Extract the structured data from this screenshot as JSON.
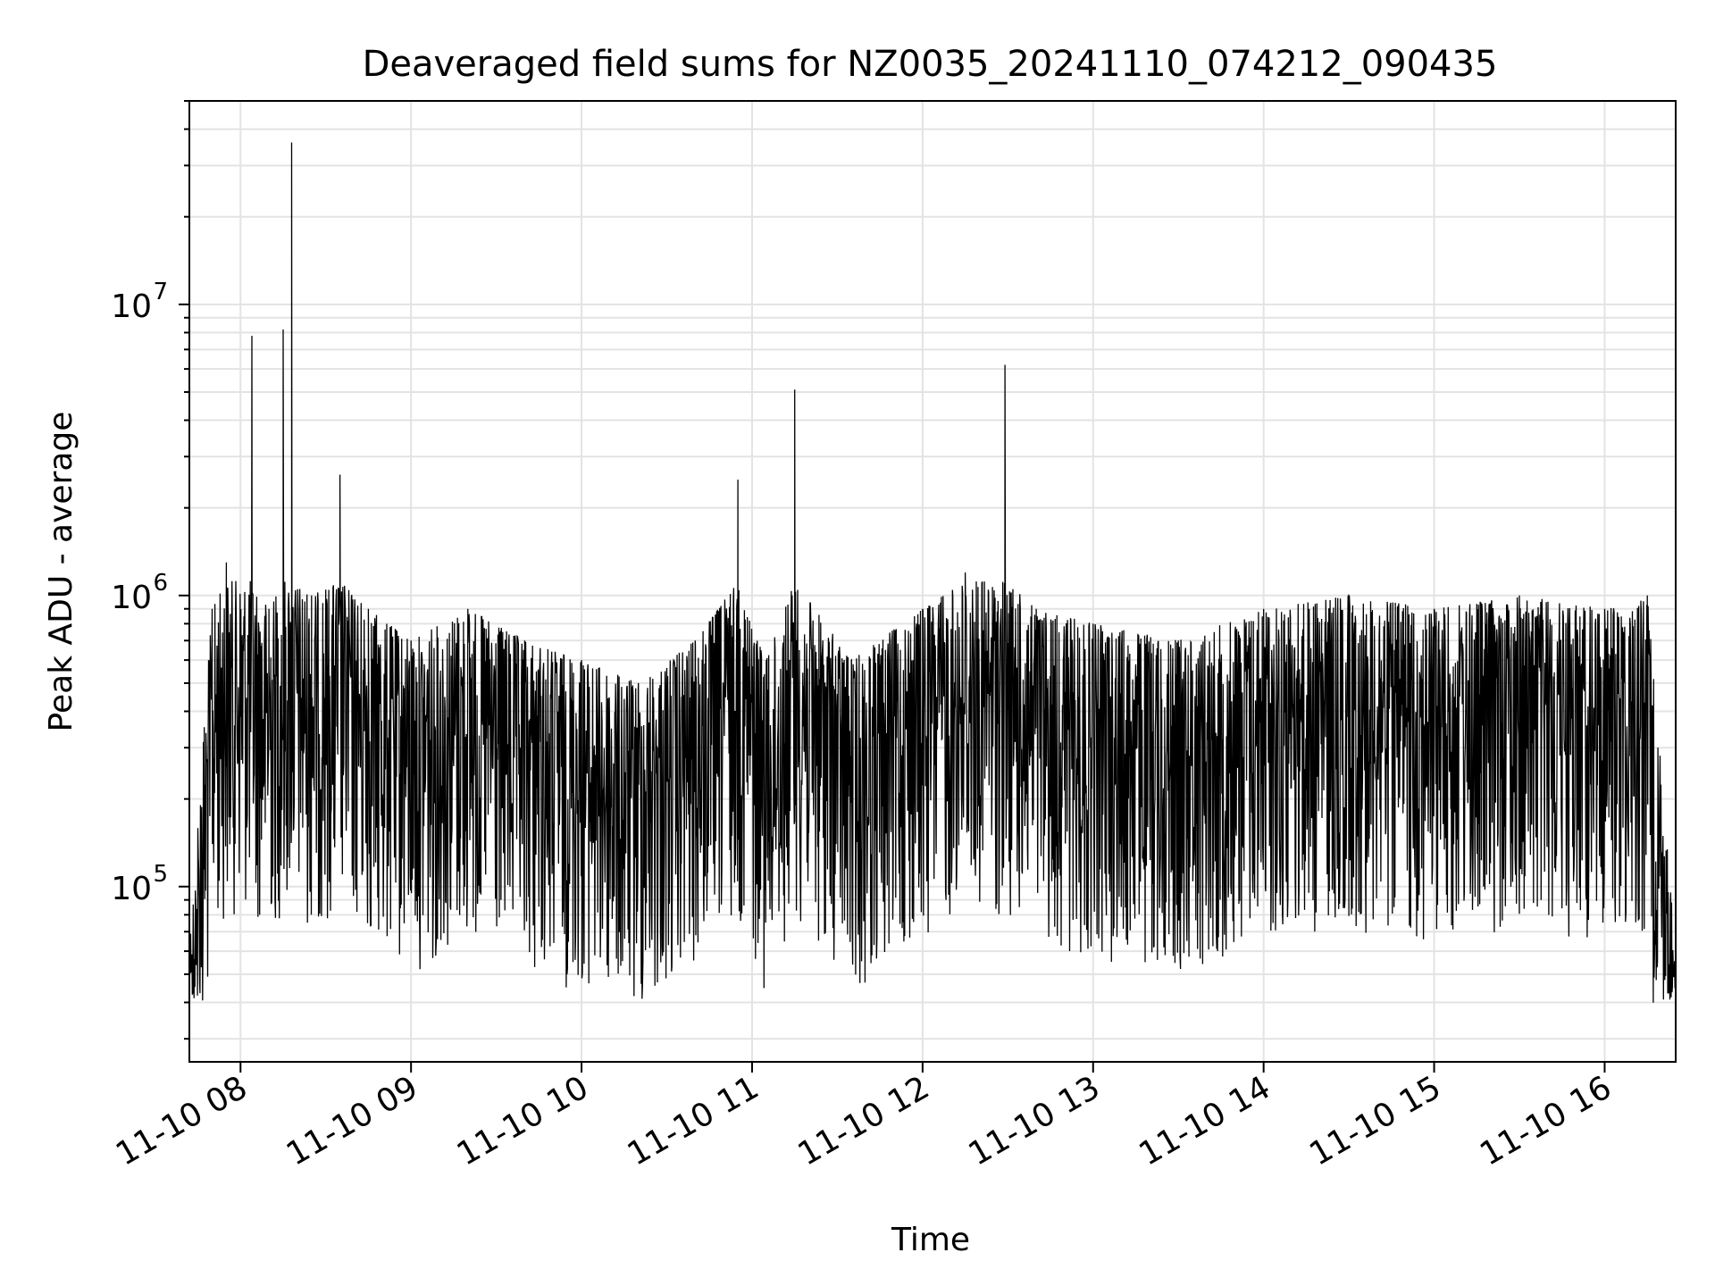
{
  "chart_data": {
    "type": "line",
    "title": "Deaveraged field sums for NZ0035_20241110_074212_090435",
    "xlabel": "Time",
    "ylabel": "Peak ADU - average",
    "yscale": "log",
    "xlim": [
      "2024-11-10 07:42",
      "2024-11-10 16:25"
    ],
    "ylim": [
      25000,
      50000000
    ],
    "grid": true,
    "line_color": "#000000",
    "x_ticks": [
      "2024-11-10 08:00",
      "2024-11-10 09:00",
      "2024-11-10 10:00",
      "2024-11-10 11:00",
      "2024-11-10 12:00",
      "2024-11-10 13:00",
      "2024-11-10 14:00",
      "2024-11-10 15:00",
      "2024-11-10 16:00"
    ],
    "x_tick_labels": [
      "11-10 08",
      "11-10 09",
      "11-10 10",
      "11-10 11",
      "11-10 12",
      "11-10 13",
      "11-10 14",
      "11-10 15",
      "11-10 16"
    ],
    "y_ticks": [
      100000,
      1000000,
      10000000
    ],
    "y_tick_labels": [
      {
        "base": "10",
        "exp": "5"
      },
      {
        "base": "10",
        "exp": "6"
      },
      {
        "base": "10",
        "exp": "7"
      }
    ],
    "series": [
      {
        "values_note_free": true,
        "x": [
          "2024-11-10 07:42",
          "2024-11-10 07:50",
          "2024-11-10 07:55",
          "2024-11-10 08:04",
          "2024-11-10 08:10",
          "2024-11-10 08:15",
          "2024-11-10 08:18",
          "2024-11-10 08:25",
          "2024-11-10 08:35",
          "2024-11-10 08:45",
          "2024-11-10 09:00",
          "2024-11-10 09:20",
          "2024-11-10 09:40",
          "2024-11-10 10:00",
          "2024-11-10 10:20",
          "2024-11-10 10:40",
          "2024-11-10 10:55",
          "2024-11-10 11:05",
          "2024-11-10 11:15",
          "2024-11-10 11:35",
          "2024-11-10 12:00",
          "2024-11-10 12:15",
          "2024-11-10 12:29",
          "2024-11-10 12:40",
          "2024-11-10 13:00",
          "2024-11-10 13:30",
          "2024-11-10 14:00",
          "2024-11-10 14:30",
          "2024-11-10 15:00",
          "2024-11-10 15:30",
          "2024-11-10 16:00",
          "2024-11-10 16:15",
          "2024-11-10 16:25"
        ],
        "y": [
          70000,
          900000,
          1300000,
          7800000,
          900000,
          8200000,
          36000000,
          1000000,
          2600000,
          900000,
          700000,
          900000,
          700000,
          600000,
          500000,
          700000,
          2500000,
          600000,
          5100000,
          600000,
          900000,
          1200000,
          6200000,
          900000,
          800000,
          700000,
          900000,
          1000000,
          900000,
          1000000,
          900000,
          1000000,
          60000
        ]
      }
    ]
  }
}
